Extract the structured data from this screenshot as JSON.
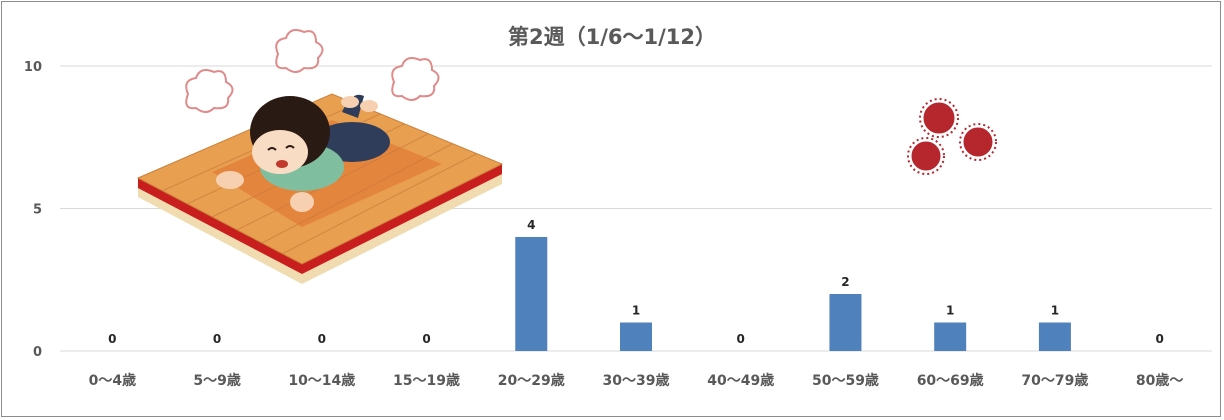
{
  "chart_data": {
    "type": "bar",
    "title": "第2週（1/6～1/12）",
    "xlabel": "",
    "ylabel": "",
    "categories": [
      "0～4歳",
      "5～9歳",
      "10～14歳",
      "15～19歳",
      "20～29歳",
      "30～39歳",
      "40～49歳",
      "50～59歳",
      "60～69歳",
      "70～79歳",
      "80歳～"
    ],
    "values": [
      0,
      0,
      0,
      0,
      4,
      1,
      0,
      2,
      1,
      1,
      0
    ],
    "ylim": [
      0,
      10
    ],
    "yticks": [
      0,
      5,
      10
    ],
    "grid": true,
    "legend": "none",
    "bar_color": "#4f81bd",
    "grid_color": "#d9d9d9"
  },
  "decorations": {
    "illustration_left": "girl-lying-on-heated-floor-illustration",
    "illustration_right": "virus-icon"
  }
}
